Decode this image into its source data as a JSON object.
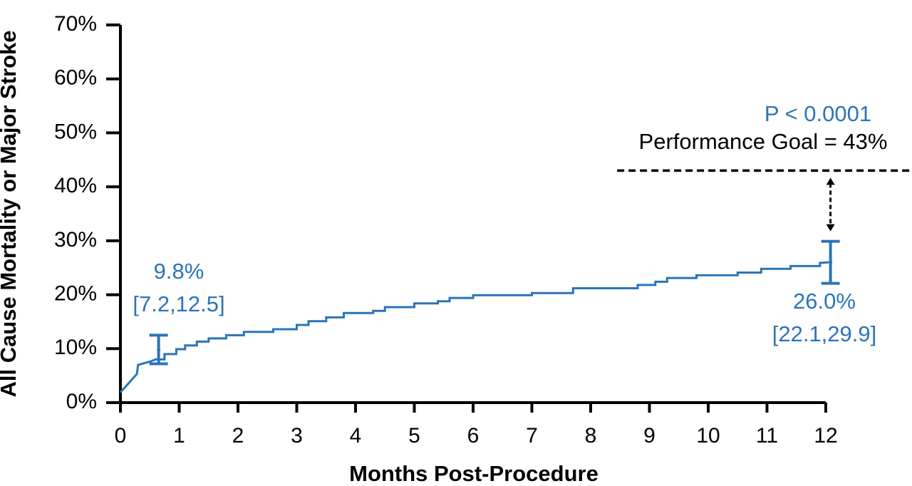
{
  "chart_data": {
    "type": "line",
    "x_label": "Months Post-Procedure",
    "y_label": "All Cause Mortality or Major Stroke",
    "xlim": [
      0,
      12
    ],
    "ylim": [
      0,
      70
    ],
    "xticks": [
      0,
      1,
      2,
      3,
      4,
      5,
      6,
      7,
      8,
      9,
      10,
      11,
      12
    ],
    "yticks": [
      {
        "value": 0,
        "label": "0%"
      },
      {
        "value": 10,
        "label": "10%"
      },
      {
        "value": 20,
        "label": "20%"
      },
      {
        "value": 30,
        "label": "30%"
      },
      {
        "value": 40,
        "label": "40%"
      },
      {
        "value": 50,
        "label": "50%"
      },
      {
        "value": 60,
        "label": "60%"
      },
      {
        "value": 70,
        "label": "70%"
      }
    ],
    "series": [
      {
        "color": "#2b74b8",
        "x": [
          0,
          0.28,
          0.3,
          0.5,
          0.6,
          0.75,
          0.75,
          0.95,
          0.95,
          1.1,
          1.1,
          1.3,
          1.3,
          1.5,
          1.5,
          1.8,
          1.8,
          2.1,
          2.1,
          2.6,
          2.6,
          3.0,
          3.0,
          3.2,
          3.2,
          3.5,
          3.5,
          3.8,
          3.8,
          4.3,
          4.3,
          4.5,
          4.5,
          5.0,
          5.0,
          5.4,
          5.4,
          5.6,
          5.6,
          6.0,
          6.0,
          7.0,
          7.0,
          7.7,
          7.7,
          8.8,
          8.8,
          9.1,
          9.1,
          9.3,
          9.3,
          9.8,
          9.8,
          10.5,
          10.5,
          10.9,
          10.9,
          11.4,
          11.4,
          11.9,
          11.9,
          12.05
        ],
        "values": [
          1.9,
          5.3,
          7.0,
          7.6,
          8.0,
          8.0,
          9.0,
          9.0,
          9.9,
          9.9,
          10.6,
          10.6,
          11.3,
          11.3,
          11.9,
          11.9,
          12.5,
          12.5,
          13.1,
          13.1,
          13.6,
          13.6,
          14.4,
          14.4,
          15.1,
          15.1,
          15.8,
          15.8,
          16.6,
          16.6,
          17.0,
          17.0,
          17.7,
          17.7,
          18.4,
          18.4,
          18.8,
          18.8,
          19.4,
          19.4,
          19.9,
          19.9,
          20.3,
          20.3,
          21.2,
          21.2,
          21.8,
          21.8,
          22.4,
          22.4,
          23.1,
          23.1,
          23.6,
          23.6,
          24.1,
          24.1,
          24.8,
          24.8,
          25.3,
          25.3,
          25.9,
          26.0
        ]
      }
    ],
    "errorbars": [
      {
        "x": 0.65,
        "value": 9.8,
        "value_label": "9.8%",
        "lower": 7.2,
        "upper": 12.5,
        "ci_label": "[7.2,12.5]"
      },
      {
        "x": 12.08,
        "value": 26.0,
        "value_label": "26.0%",
        "lower": 22.1,
        "upper": 29.9,
        "ci_label": "[22.1,29.9]"
      }
    ],
    "reference_line": {
      "value": 43,
      "x_start": 8.45,
      "label": "Performance Goal = 43%",
      "color": "#000000"
    },
    "p_value_label": "P < 0.0001"
  }
}
